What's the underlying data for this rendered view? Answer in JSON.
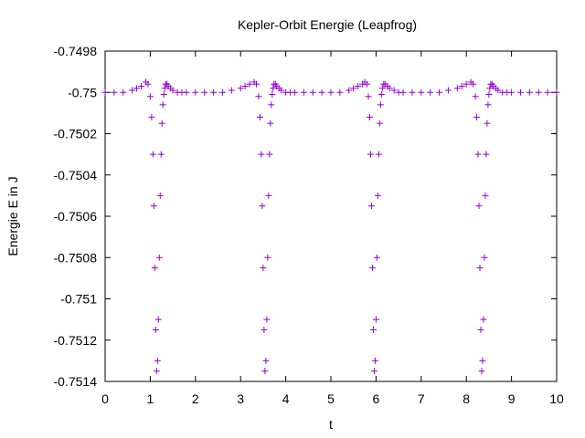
{
  "chart_data": {
    "type": "scatter",
    "title": "Kepler-Orbit Energie (Leapfrog)",
    "xlabel": "t",
    "ylabel": "Energie E in J",
    "xlim": [
      0,
      10
    ],
    "ylim": [
      -0.7514,
      -0.7498
    ],
    "x_ticks": [
      0,
      1,
      2,
      3,
      4,
      5,
      6,
      7,
      8,
      9,
      10
    ],
    "x_tick_labels": [
      "0",
      "1",
      "2",
      "3",
      "4",
      "5",
      "6",
      "7",
      "8",
      "9",
      "10"
    ],
    "y_ticks": [
      -0.7498,
      -0.75,
      -0.7502,
      -0.7504,
      -0.7506,
      -0.7508,
      -0.751,
      -0.7512,
      -0.7514
    ],
    "y_tick_labels": [
      "-0.7498",
      "-0.75",
      "-0.7502",
      "-0.7504",
      "-0.7506",
      "-0.7508",
      "-0.751",
      "-0.7512",
      "-0.7514"
    ],
    "grid": false,
    "legend": "none",
    "marker": "plus",
    "color": "#9400d3",
    "series": [
      {
        "x": [
          0.0,
          0.2,
          0.4,
          0.6,
          0.7,
          0.8,
          0.9,
          0.95,
          1.0,
          1.03,
          1.06,
          1.08,
          1.1,
          1.12,
          1.14,
          1.16,
          1.18,
          1.2,
          1.22,
          1.24,
          1.26,
          1.28,
          1.3,
          1.32,
          1.34,
          1.37,
          1.4,
          1.45,
          1.5,
          1.6,
          1.7,
          1.8,
          2.0,
          2.2,
          2.4,
          2.6,
          2.8,
          3.0,
          3.1,
          3.2,
          3.3,
          3.35,
          3.4,
          3.43,
          3.46,
          3.48,
          3.5,
          3.52,
          3.54,
          3.56,
          3.58,
          3.6,
          3.62,
          3.64,
          3.66,
          3.68,
          3.7,
          3.72,
          3.74,
          3.77,
          3.8,
          3.85,
          3.9,
          4.0,
          4.1,
          4.2,
          4.4,
          4.6,
          4.8,
          5.0,
          5.2,
          5.4,
          5.5,
          5.6,
          5.7,
          5.75,
          5.8,
          5.83,
          5.86,
          5.88,
          5.9,
          5.92,
          5.94,
          5.96,
          5.98,
          6.0,
          6.02,
          6.04,
          6.06,
          6.08,
          6.1,
          6.12,
          6.14,
          6.17,
          6.2,
          6.25,
          6.3,
          6.4,
          6.5,
          6.6,
          6.8,
          7.0,
          7.2,
          7.4,
          7.6,
          7.8,
          7.9,
          8.0,
          8.1,
          8.15,
          8.2,
          8.23,
          8.26,
          8.28,
          8.3,
          8.32,
          8.34,
          8.36,
          8.38,
          8.4,
          8.42,
          8.44,
          8.46,
          8.48,
          8.5,
          8.52,
          8.54,
          8.57,
          8.6,
          8.65,
          8.7,
          8.8,
          8.9,
          9.0,
          9.2,
          9.4,
          9.6,
          9.8,
          10.0
        ],
        "y": [
          -0.75,
          -0.75,
          -0.75,
          -0.74999,
          -0.74998,
          -0.74997,
          -0.74995,
          -0.74996,
          -0.75002,
          -0.75012,
          -0.7503,
          -0.75055,
          -0.75085,
          -0.75115,
          -0.75135,
          -0.7513,
          -0.7511,
          -0.7508,
          -0.7505,
          -0.7503,
          -0.75015,
          -0.75006,
          -0.75001,
          -0.74998,
          -0.74996,
          -0.74996,
          -0.74997,
          -0.74998,
          -0.74999,
          -0.75,
          -0.75,
          -0.75,
          -0.75,
          -0.75,
          -0.75,
          -0.75,
          -0.74999,
          -0.74998,
          -0.74997,
          -0.74996,
          -0.74995,
          -0.74996,
          -0.75002,
          -0.75012,
          -0.7503,
          -0.75055,
          -0.75085,
          -0.75115,
          -0.75135,
          -0.7513,
          -0.7511,
          -0.7508,
          -0.7505,
          -0.7503,
          -0.75015,
          -0.75006,
          -0.75001,
          -0.74998,
          -0.74996,
          -0.74996,
          -0.74997,
          -0.74998,
          -0.74999,
          -0.75,
          -0.75,
          -0.75,
          -0.75,
          -0.75,
          -0.75,
          -0.75,
          -0.75,
          -0.74999,
          -0.74998,
          -0.74997,
          -0.74996,
          -0.74995,
          -0.74996,
          -0.75002,
          -0.75012,
          -0.7503,
          -0.75055,
          -0.75085,
          -0.75115,
          -0.75135,
          -0.7513,
          -0.7511,
          -0.7508,
          -0.7505,
          -0.7503,
          -0.75015,
          -0.75006,
          -0.75001,
          -0.74998,
          -0.74996,
          -0.74996,
          -0.74997,
          -0.74998,
          -0.74999,
          -0.75,
          -0.75,
          -0.75,
          -0.75,
          -0.75,
          -0.75,
          -0.74999,
          -0.74998,
          -0.74997,
          -0.74996,
          -0.74995,
          -0.74996,
          -0.75002,
          -0.75012,
          -0.7503,
          -0.75055,
          -0.75085,
          -0.75115,
          -0.75135,
          -0.7513,
          -0.7511,
          -0.7508,
          -0.7505,
          -0.7503,
          -0.75015,
          -0.75006,
          -0.75001,
          -0.74998,
          -0.74996,
          -0.74996,
          -0.74997,
          -0.74998,
          -0.74999,
          -0.75,
          -0.75,
          -0.75,
          -0.75,
          -0.75,
          -0.75,
          -0.75,
          -0.75
        ]
      }
    ]
  }
}
